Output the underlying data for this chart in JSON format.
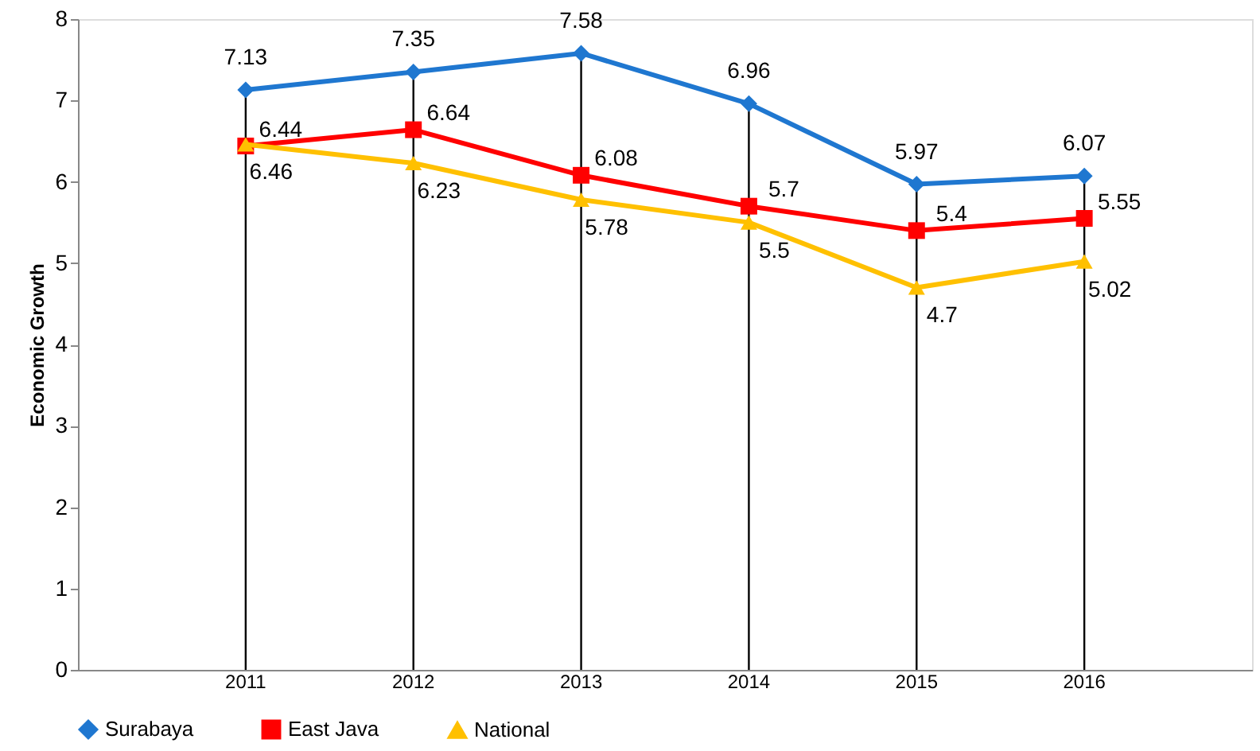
{
  "chart_data": {
    "type": "line",
    "ylabel": "Economic Growth",
    "categories": [
      "2011",
      "2012",
      "2013",
      "2014",
      "2015",
      "2016"
    ],
    "series": [
      {
        "name": "Surabaya",
        "color": "#1f77d0",
        "marker": "diamond",
        "values": [
          7.13,
          7.35,
          7.58,
          6.96,
          5.97,
          6.07
        ]
      },
      {
        "name": "East Java",
        "color": "#ff0000",
        "marker": "square",
        "values": [
          6.44,
          6.64,
          6.08,
          5.7,
          5.4,
          5.55
        ]
      },
      {
        "name": "National",
        "color": "#ffc000",
        "marker": "triangle",
        "values": [
          6.46,
          6.23,
          5.78,
          5.5,
          4.7,
          5.02
        ]
      }
    ],
    "ref_lines": [
      {
        "axis": "x",
        "value": "2011",
        "color": "#000000"
      },
      {
        "axis": "x",
        "value": "2012",
        "color": "#000000"
      },
      {
        "axis": "x",
        "value": "2013",
        "color": "#000000"
      },
      {
        "axis": "x",
        "value": "2014",
        "color": "#000000"
      },
      {
        "axis": "x",
        "value": "2015",
        "color": "#000000"
      },
      {
        "axis": "x",
        "value": "2016",
        "color": "#000000"
      }
    ],
    "ylim": [
      0,
      8
    ],
    "yticks": [
      0,
      1,
      2,
      3,
      4,
      5,
      6,
      7,
      8
    ],
    "grid": false,
    "legend": "bottom",
    "data_labels": true,
    "line_style": "solid"
  }
}
